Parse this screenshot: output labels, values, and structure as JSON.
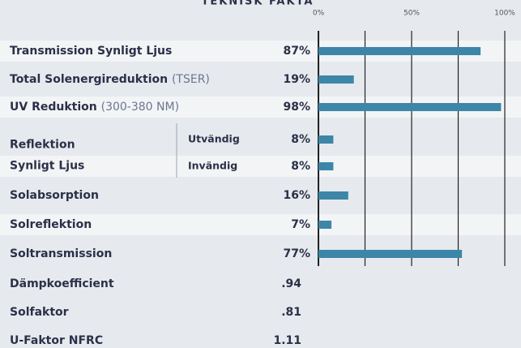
{
  "chart_data": {
    "type": "bar",
    "orientation": "horizontal",
    "title": "TEKNISK FAKTA",
    "categories": [
      "Transmission Synligt Ljus",
      "Total Solenergireduktion",
      "UV Reduktion",
      "Utvändig",
      "Invändig",
      "Solabsorption",
      "Solreflektion",
      "Soltransmission"
    ],
    "category_notes": [
      null,
      "(TSER)",
      "(300-380 NM)",
      null,
      null,
      null,
      null,
      null
    ],
    "group": {
      "lines": [
        "Reflektion",
        "Synligt Ljus"
      ],
      "members": [
        "Utvändig",
        "Invändig"
      ]
    },
    "values": [
      87,
      19,
      98,
      8,
      8,
      16,
      7,
      77
    ],
    "value_labels": [
      "87%",
      "19%",
      "98%",
      "8%",
      "8%",
      "16%",
      "7%",
      "77%"
    ],
    "color": "#3d86a8",
    "xlim": [
      0,
      100
    ],
    "xticks": [
      {
        "value": 0,
        "label": "0%"
      },
      {
        "value": 25,
        "label": null
      },
      {
        "value": 50,
        "label": "50%"
      },
      {
        "value": 75,
        "label": null
      },
      {
        "value": 100,
        "label": "100%"
      }
    ],
    "grid": true,
    "extra_rows": [
      {
        "label": "Dämpkoefficient",
        "value": ".94"
      },
      {
        "label": "Solfaktor",
        "value": ".81"
      },
      {
        "label": "U-Faktor NFRC",
        "value": "1.11"
      }
    ]
  }
}
